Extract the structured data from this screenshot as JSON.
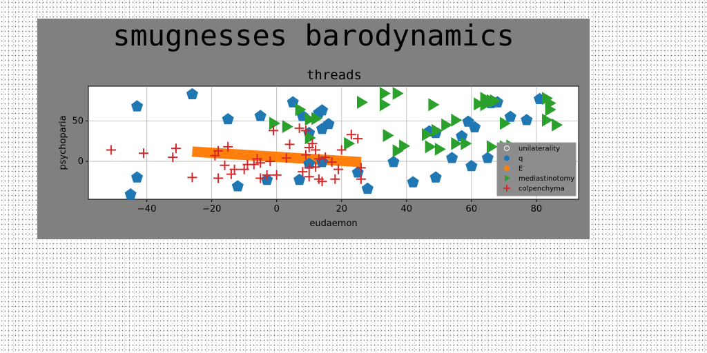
{
  "chart_data": {
    "type": "scatter",
    "suptitle": "smugnesses barodynamics",
    "title": "threads",
    "xlabel": "eudaemon",
    "ylabel": "psychoparia",
    "xlim": [
      -58,
      93
    ],
    "ylim": [
      -47,
      93
    ],
    "xticks": [
      -40,
      -20,
      0,
      20,
      40,
      60,
      80
    ],
    "yticks": [
      0,
      50
    ],
    "grid": true,
    "legend_position": "lower-right",
    "colors": {
      "figure_bg": "#808080",
      "axes_bg": "#ffffff",
      "legend_bg": "#8c8c8c",
      "grid": "#b0b0b0"
    },
    "series": [
      {
        "name": "unilaterality",
        "kind": "line",
        "color": "#ffffff",
        "points": []
      },
      {
        "name": "q",
        "kind": "pentagon",
        "color": "#1f77b4",
        "points": [
          [
            -26,
            83
          ],
          [
            -43,
            68
          ],
          [
            -15,
            52
          ],
          [
            -5,
            56
          ],
          [
            -43,
            -20
          ],
          [
            -45,
            -41
          ],
          [
            -12,
            -31
          ],
          [
            -3,
            -23
          ],
          [
            5,
            73
          ],
          [
            8,
            56
          ],
          [
            13,
            60
          ],
          [
            14,
            63
          ],
          [
            16,
            46
          ],
          [
            14,
            40
          ],
          [
            10,
            35
          ],
          [
            10,
            -3
          ],
          [
            14,
            -1
          ],
          [
            7,
            -23
          ],
          [
            25,
            -14
          ],
          [
            28,
            -34
          ],
          [
            36,
            -1
          ],
          [
            42,
            -26
          ],
          [
            49,
            -20
          ],
          [
            47,
            37
          ],
          [
            49,
            35
          ],
          [
            54,
            4
          ],
          [
            57,
            31
          ],
          [
            59,
            49
          ],
          [
            61,
            42
          ],
          [
            60,
            -6
          ],
          [
            65,
            4
          ],
          [
            68,
            73
          ],
          [
            66,
            72
          ],
          [
            72,
            55
          ],
          [
            77,
            51
          ],
          [
            81,
            77
          ],
          [
            81,
            -2
          ]
        ]
      },
      {
        "name": "E",
        "kind": "line",
        "color": "#ff7f0e",
        "points": [
          [
            -26,
            12
          ],
          [
            26,
            -1
          ]
        ]
      },
      {
        "name": "mediastinotomy",
        "kind": "triangle-right",
        "color": "#2ca02c",
        "points": [
          [
            33,
            84
          ],
          [
            37,
            84
          ],
          [
            26,
            73
          ],
          [
            33,
            70
          ],
          [
            7,
            64
          ],
          [
            -1,
            47
          ],
          [
            3,
            43
          ],
          [
            10,
            52
          ],
          [
            12,
            53
          ],
          [
            10,
            29
          ],
          [
            22,
            22
          ],
          [
            37,
            13
          ],
          [
            39,
            19
          ],
          [
            34,
            32
          ],
          [
            46,
            33
          ],
          [
            47,
            18
          ],
          [
            48,
            70
          ],
          [
            49,
            38
          ],
          [
            52,
            45
          ],
          [
            55,
            51
          ],
          [
            55,
            22
          ],
          [
            50,
            15
          ],
          [
            58,
            22
          ],
          [
            62,
            71
          ],
          [
            64,
            70
          ],
          [
            64,
            78
          ],
          [
            67,
            75
          ],
          [
            66,
            75
          ],
          [
            70,
            47
          ],
          [
            66,
            18
          ],
          [
            70,
            18
          ],
          [
            72,
            19
          ],
          [
            83,
            78
          ],
          [
            84,
            72
          ],
          [
            84,
            64
          ],
          [
            83,
            51
          ],
          [
            86,
            45
          ]
        ]
      },
      {
        "name": "colpenchyma",
        "kind": "plus",
        "color": "#d62728",
        "points": [
          [
            -51,
            14
          ],
          [
            -41,
            10
          ],
          [
            -31,
            16
          ],
          [
            -32,
            5
          ],
          [
            -26,
            -20
          ],
          [
            -18,
            13
          ],
          [
            -19,
            7
          ],
          [
            -18,
            -21
          ],
          [
            -15,
            18
          ],
          [
            -16,
            -5
          ],
          [
            -14,
            -16
          ],
          [
            -13,
            -10
          ],
          [
            -10,
            -10
          ],
          [
            -9,
            -4
          ],
          [
            -7,
            -4
          ],
          [
            -5,
            -2
          ],
          [
            -6,
            3
          ],
          [
            -5,
            -21
          ],
          [
            -3,
            -17
          ],
          [
            -2,
            0
          ],
          [
            -1,
            38
          ],
          [
            0,
            -17
          ],
          [
            3,
            4
          ],
          [
            4,
            21
          ],
          [
            7,
            41
          ],
          [
            9,
            38
          ],
          [
            10,
            17
          ],
          [
            9,
            8
          ],
          [
            10,
            -8
          ],
          [
            8,
            -13
          ],
          [
            13,
            3
          ],
          [
            12,
            14
          ],
          [
            10,
            -19
          ],
          [
            13,
            -22
          ],
          [
            14,
            -25
          ],
          [
            15,
            5
          ],
          [
            17,
            -1
          ],
          [
            18,
            -22
          ],
          [
            19,
            -10
          ],
          [
            20,
            14
          ],
          [
            23,
            33
          ],
          [
            25,
            28
          ],
          [
            26,
            -8
          ],
          [
            26,
            -22
          ],
          [
            11,
            22
          ],
          [
            12,
            -7
          ]
        ]
      }
    ]
  }
}
